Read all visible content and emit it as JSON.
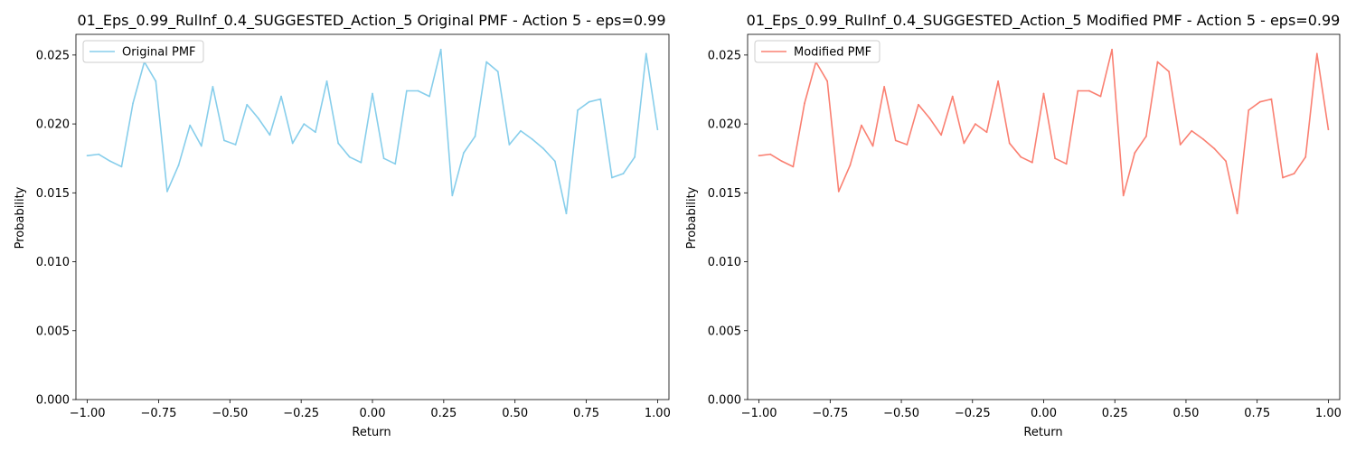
{
  "chart_data": [
    {
      "type": "line",
      "title": "01_Eps_0.99_RulInf_0.4_SUGGESTED_Action_5 Original PMF - Action 5 - eps=0.99",
      "xlabel": "Return",
      "ylabel": "Probability",
      "xlim": [
        -1.04,
        1.04
      ],
      "ylim": [
        0,
        0.0265
      ],
      "x_ticks": [
        -1.0,
        -0.75,
        -0.5,
        -0.25,
        0.0,
        0.25,
        0.5,
        0.75,
        1.0
      ],
      "x_tick_labels": [
        "−1.00",
        "−0.75",
        "−0.50",
        "−0.25",
        "0.00",
        "0.25",
        "0.50",
        "0.75",
        "1.00"
      ],
      "y_ticks": [
        0.0,
        0.005,
        0.01,
        0.015,
        0.02,
        0.025
      ],
      "y_tick_labels": [
        "0.000",
        "0.005",
        "0.010",
        "0.015",
        "0.020",
        "0.025"
      ],
      "legend_position": "upper-left",
      "grid": false,
      "series": [
        {
          "name": "Original PMF",
          "color": "#87CEEB",
          "x": [
            -1.0,
            -0.96,
            -0.92,
            -0.88,
            -0.84,
            -0.8,
            -0.76,
            -0.72,
            -0.68,
            -0.64,
            -0.6,
            -0.56,
            -0.52,
            -0.48,
            -0.44,
            -0.4,
            -0.36,
            -0.32,
            -0.28,
            -0.24,
            -0.2,
            -0.16,
            -0.12,
            -0.08,
            -0.04,
            0.0,
            0.04,
            0.08,
            0.12,
            0.16,
            0.2,
            0.24,
            0.28,
            0.32,
            0.36,
            0.4,
            0.44,
            0.48,
            0.52,
            0.56,
            0.6,
            0.64,
            0.68,
            0.72,
            0.76,
            0.8,
            0.84,
            0.88,
            0.92,
            0.96,
            1.0
          ],
          "y": [
            0.0177,
            0.0178,
            0.0173,
            0.0169,
            0.0215,
            0.0245,
            0.0231,
            0.0151,
            0.017,
            0.0199,
            0.0184,
            0.0227,
            0.0188,
            0.0185,
            0.0214,
            0.0204,
            0.0192,
            0.022,
            0.0186,
            0.02,
            0.0194,
            0.0231,
            0.0186,
            0.0176,
            0.0172,
            0.0222,
            0.0175,
            0.0171,
            0.0224,
            0.0224,
            0.022,
            0.0254,
            0.0148,
            0.0179,
            0.0191,
            0.0245,
            0.0238,
            0.0185,
            0.0195,
            0.0189,
            0.0182,
            0.0173,
            0.0135,
            0.021,
            0.0216,
            0.0218,
            0.0161,
            0.0164,
            0.0176,
            0.0251,
            0.0196
          ]
        }
      ]
    },
    {
      "type": "line",
      "title": "01_Eps_0.99_RulInf_0.4_SUGGESTED_Action_5 Modified PMF - Action 5 - eps=0.99",
      "xlabel": "Return",
      "ylabel": "Probability",
      "xlim": [
        -1.04,
        1.04
      ],
      "ylim": [
        0,
        0.0265
      ],
      "x_ticks": [
        -1.0,
        -0.75,
        -0.5,
        -0.25,
        0.0,
        0.25,
        0.5,
        0.75,
        1.0
      ],
      "x_tick_labels": [
        "−1.00",
        "−0.75",
        "−0.50",
        "−0.25",
        "0.00",
        "0.25",
        "0.50",
        "0.75",
        "1.00"
      ],
      "y_ticks": [
        0.0,
        0.005,
        0.01,
        0.015,
        0.02,
        0.025
      ],
      "y_tick_labels": [
        "0.000",
        "0.005",
        "0.010",
        "0.015",
        "0.020",
        "0.025"
      ],
      "legend_position": "upper-left",
      "grid": false,
      "series": [
        {
          "name": "Modified PMF",
          "color": "#FA8072",
          "x": [
            -1.0,
            -0.96,
            -0.92,
            -0.88,
            -0.84,
            -0.8,
            -0.76,
            -0.72,
            -0.68,
            -0.64,
            -0.6,
            -0.56,
            -0.52,
            -0.48,
            -0.44,
            -0.4,
            -0.36,
            -0.32,
            -0.28,
            -0.24,
            -0.2,
            -0.16,
            -0.12,
            -0.08,
            -0.04,
            0.0,
            0.04,
            0.08,
            0.12,
            0.16,
            0.2,
            0.24,
            0.28,
            0.32,
            0.36,
            0.4,
            0.44,
            0.48,
            0.52,
            0.56,
            0.6,
            0.64,
            0.68,
            0.72,
            0.76,
            0.8,
            0.84,
            0.88,
            0.92,
            0.96,
            1.0
          ],
          "y": [
            0.0177,
            0.0178,
            0.0173,
            0.0169,
            0.0215,
            0.0245,
            0.0231,
            0.0151,
            0.017,
            0.0199,
            0.0184,
            0.0227,
            0.0188,
            0.0185,
            0.0214,
            0.0204,
            0.0192,
            0.022,
            0.0186,
            0.02,
            0.0194,
            0.0231,
            0.0186,
            0.0176,
            0.0172,
            0.0222,
            0.0175,
            0.0171,
            0.0224,
            0.0224,
            0.022,
            0.0254,
            0.0148,
            0.0179,
            0.0191,
            0.0245,
            0.0238,
            0.0185,
            0.0195,
            0.0189,
            0.0182,
            0.0173,
            0.0135,
            0.021,
            0.0216,
            0.0218,
            0.0161,
            0.0164,
            0.0176,
            0.0251,
            0.0196
          ]
        }
      ]
    }
  ]
}
